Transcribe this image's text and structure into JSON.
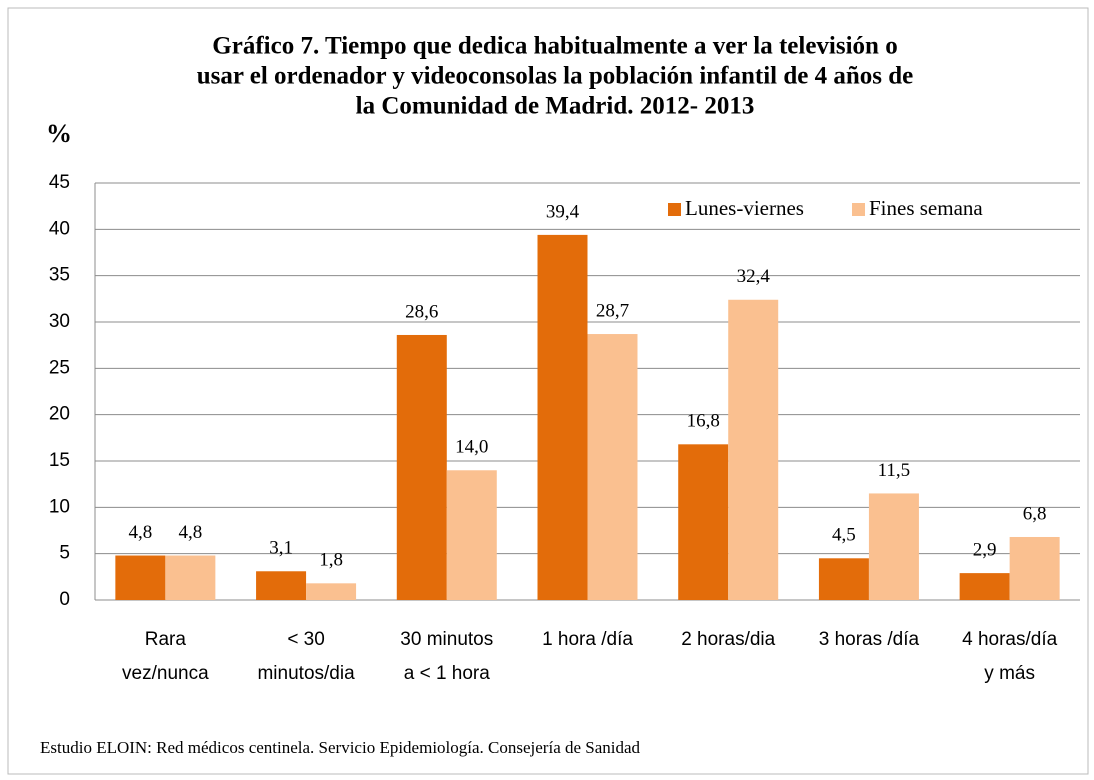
{
  "chart_data": {
    "type": "bar",
    "title": [
      "Gráfico 7. Tiempo que dedica habitualmente a ver la televisión o",
      "usar el ordenador y videoconsolas la población infantil de 4 años de",
      "la Comunidad de Madrid. 2012- 2013"
    ],
    "ylabel": "%",
    "categories": [
      [
        "Rara",
        "vez/nunca"
      ],
      [
        "< 30",
        "minutos/dia"
      ],
      [
        "30 minutos",
        "a < 1 hora"
      ],
      [
        "1 hora /día"
      ],
      [
        "2 horas/dia"
      ],
      [
        "3 horas /día"
      ],
      [
        "4 horas/día",
        "y más"
      ]
    ],
    "series": [
      {
        "name": "Lunes-viernes",
        "color": "#e36c0a",
        "values": [
          4.8,
          3.1,
          28.6,
          39.4,
          16.8,
          4.5,
          2.9
        ],
        "value_labels": [
          "4,8",
          "3,1",
          "28,6",
          "39,4",
          "16,8",
          "4,5",
          "2,9"
        ]
      },
      {
        "name": "Fines semana",
        "color": "#fac090",
        "values": [
          4.8,
          1.8,
          14.0,
          28.7,
          32.4,
          11.5,
          6.8
        ],
        "value_labels": [
          "4,8",
          "1,8",
          "14,0",
          "28,7",
          "32,4",
          "11,5",
          "6,8"
        ]
      }
    ],
    "ylim": [
      0,
      45
    ],
    "yticks": [
      0,
      5,
      10,
      15,
      20,
      25,
      30,
      35,
      40,
      45
    ],
    "grid": true,
    "legend": "top-right",
    "source": "Estudio ELOIN: Red médicos centinela. Servicio Epidemiología. Consejería de Sanidad"
  }
}
